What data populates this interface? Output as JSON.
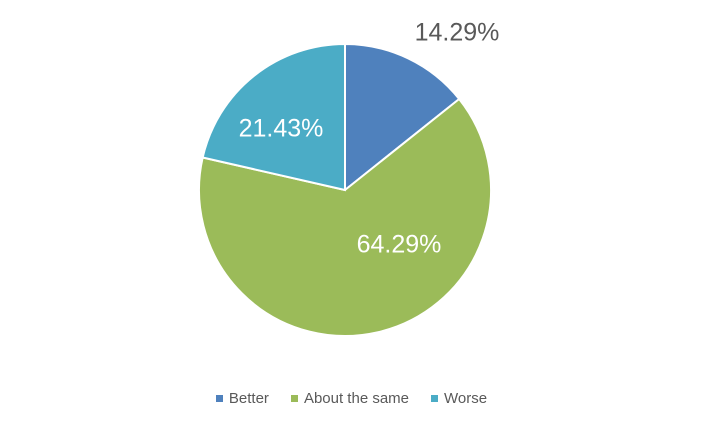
{
  "chart_data": {
    "type": "pie",
    "title": "",
    "start_angle": "top, clockwise",
    "categories": [
      "Better",
      "About the same",
      "Worse"
    ],
    "values": [
      14.29,
      64.29,
      21.43
    ],
    "data_labels": [
      "14.29%",
      "64.29%",
      "21.43%"
    ],
    "colors": [
      "#4F81BD",
      "#9BBB59",
      "#4BACC6"
    ],
    "legend_position": "bottom"
  }
}
